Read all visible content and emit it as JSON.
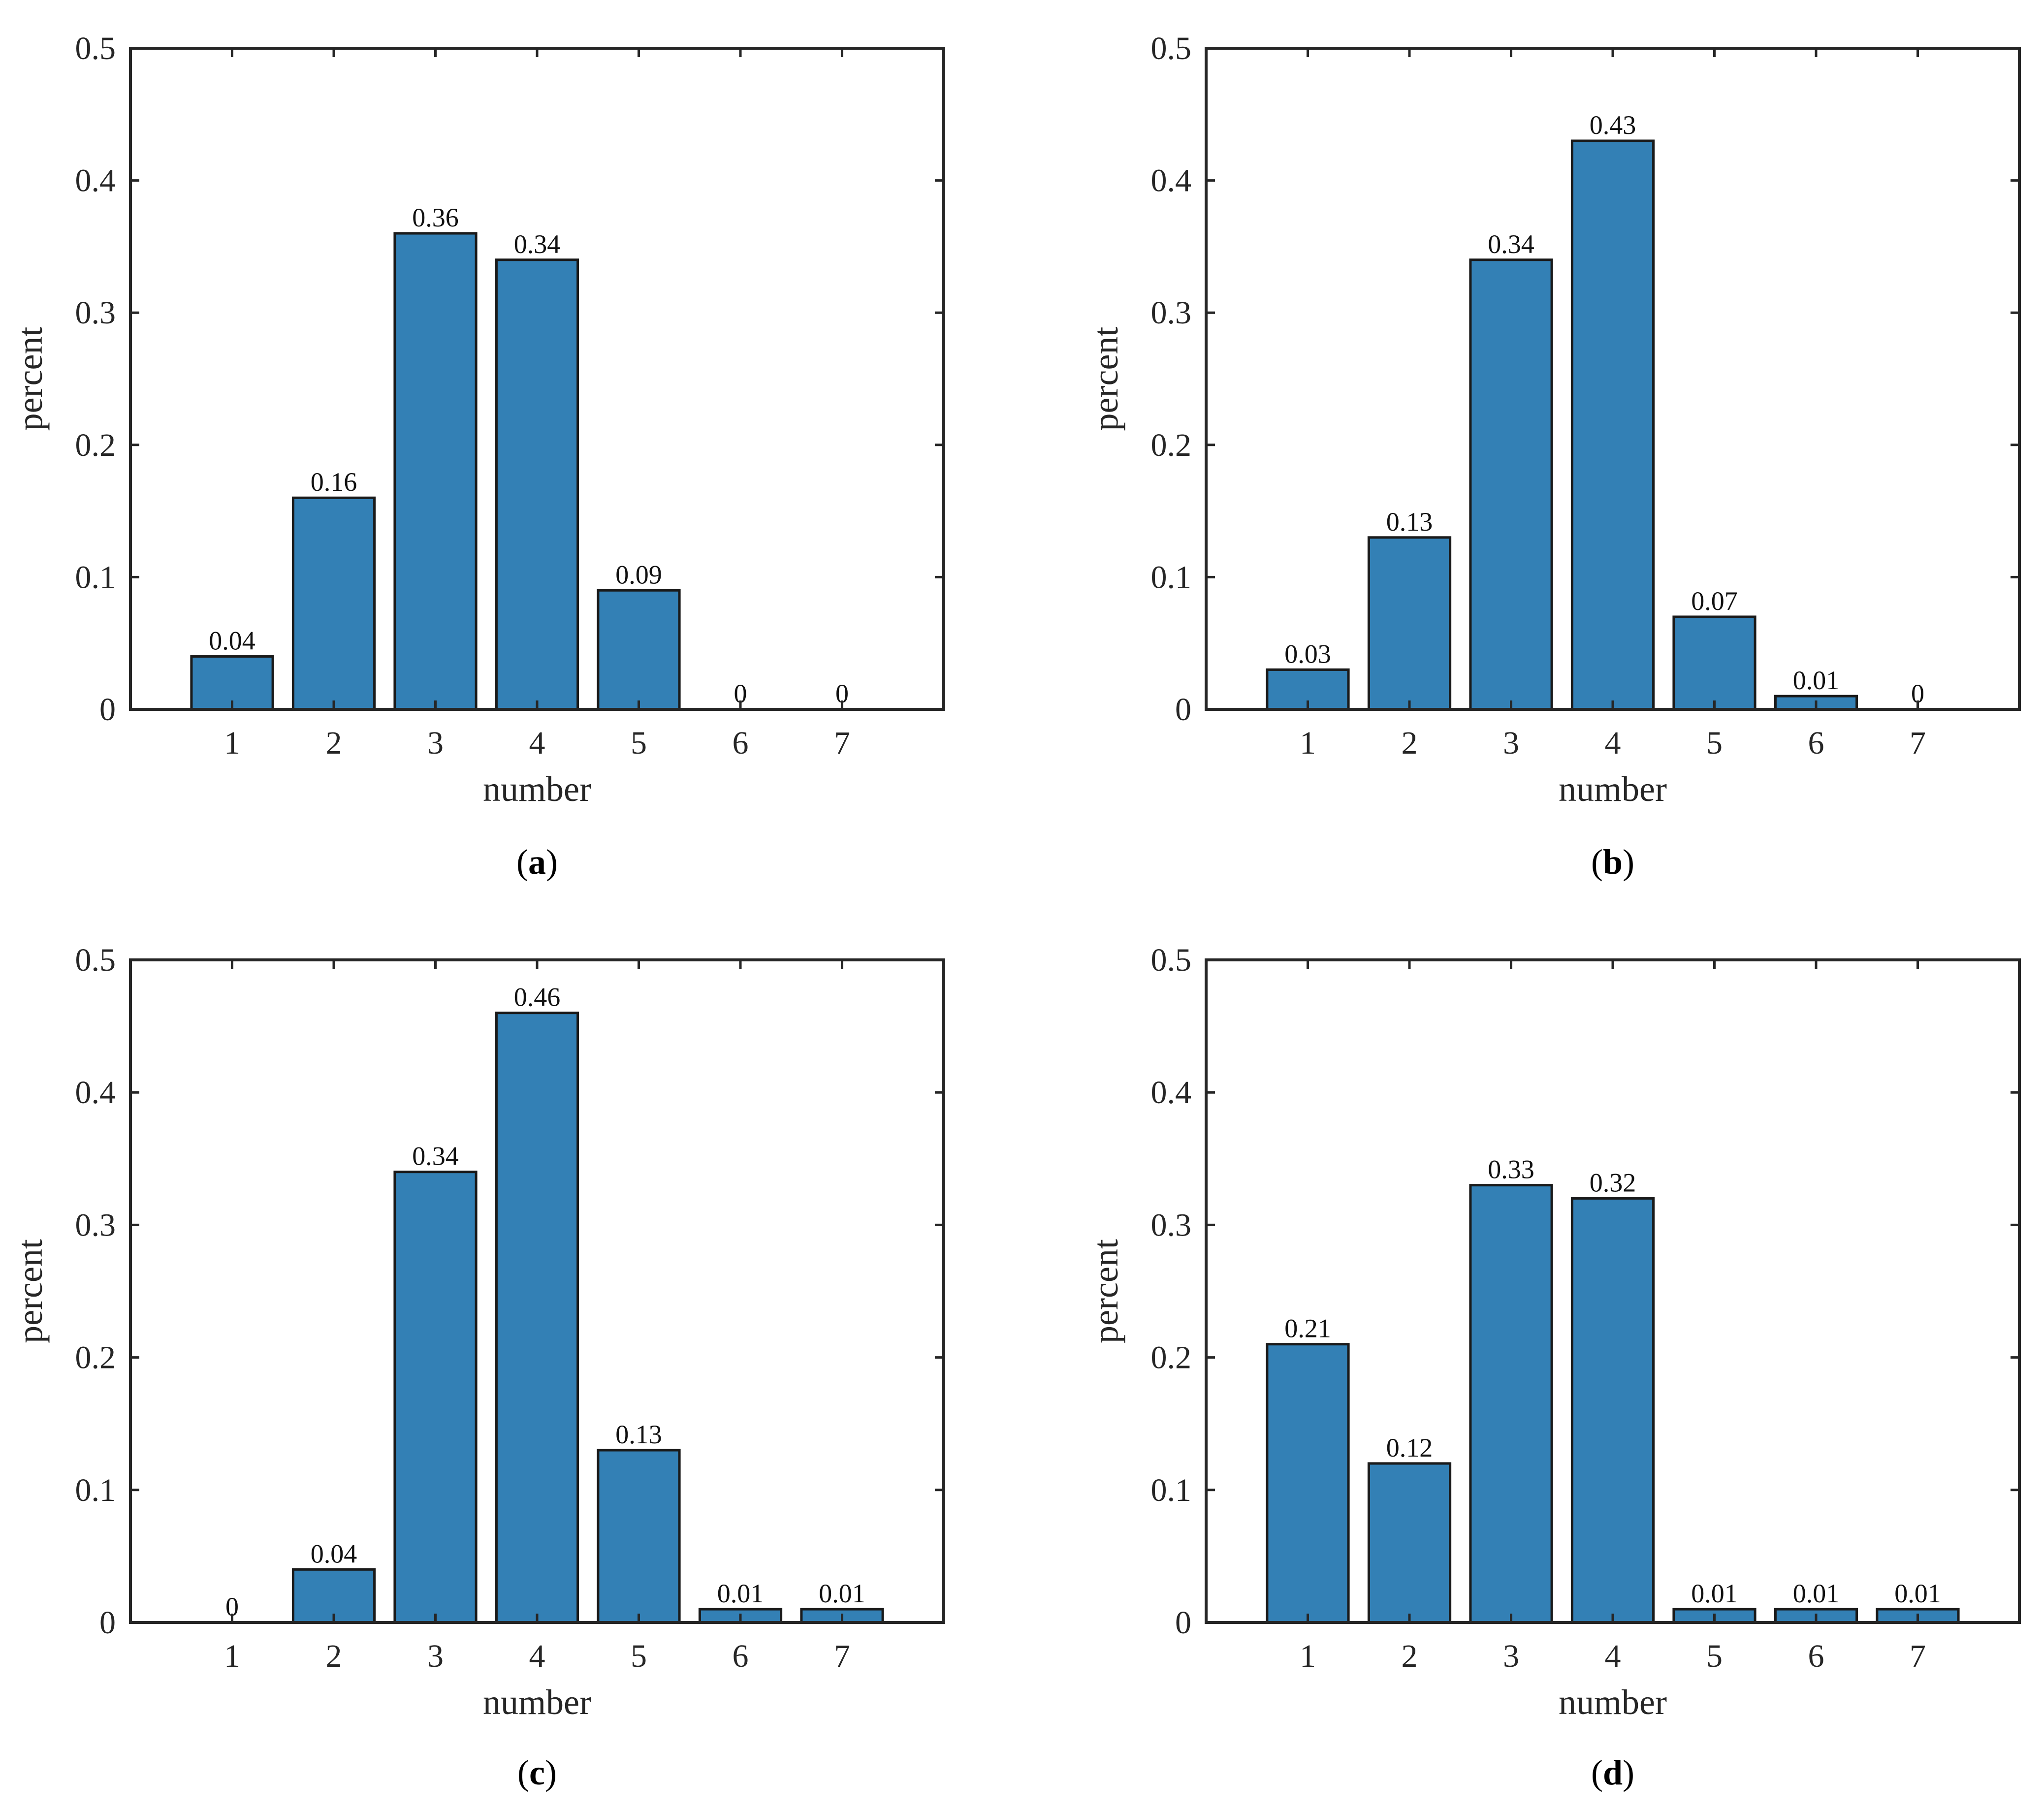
{
  "figure": {
    "colors": {
      "bar_fill": "#3380b5",
      "axis": "#262626",
      "background": "#ffffff"
    }
  },
  "chart_data": [
    {
      "panel": "a",
      "type": "bar",
      "categories": [
        "1",
        "2",
        "3",
        "4",
        "5",
        "6",
        "7"
      ],
      "values": [
        0.04,
        0.16,
        0.36,
        0.34,
        0.09,
        0,
        0
      ],
      "value_labels": [
        "0.04",
        "0.16",
        "0.36",
        "0.34",
        "0.09",
        "0",
        "0"
      ],
      "xlabel": "number",
      "ylabel": "percent",
      "ylim": [
        0,
        0.5
      ],
      "xlim": [
        0,
        8
      ],
      "yticks": [
        "0",
        "0.1",
        "0.2",
        "0.3",
        "0.4",
        "0.5"
      ],
      "grid": false,
      "caption_open": "(",
      "caption_letter": "a",
      "caption_close": ")"
    },
    {
      "panel": "b",
      "type": "bar",
      "categories": [
        "1",
        "2",
        "3",
        "4",
        "5",
        "6",
        "7"
      ],
      "values": [
        0.03,
        0.13,
        0.34,
        0.43,
        0.07,
        0.01,
        0
      ],
      "value_labels": [
        "0.03",
        "0.13",
        "0.34",
        "0.43",
        "0.07",
        "0.01",
        "0"
      ],
      "xlabel": "number",
      "ylabel": "percent",
      "ylim": [
        0,
        0.5
      ],
      "xlim": [
        0,
        8
      ],
      "yticks": [
        "0",
        "0.1",
        "0.2",
        "0.3",
        "0.4",
        "0.5"
      ],
      "grid": false,
      "caption_open": "(",
      "caption_letter": "b",
      "caption_close": ")"
    },
    {
      "panel": "c",
      "type": "bar",
      "categories": [
        "1",
        "2",
        "3",
        "4",
        "5",
        "6",
        "7"
      ],
      "values": [
        0,
        0.04,
        0.34,
        0.46,
        0.13,
        0.01,
        0.01
      ],
      "value_labels": [
        "0",
        "0.04",
        "0.34",
        "0.46",
        "0.13",
        "0.01",
        "0.01"
      ],
      "xlabel": "number",
      "ylabel": "percent",
      "ylim": [
        0,
        0.5
      ],
      "xlim": [
        0,
        8
      ],
      "yticks": [
        "0",
        "0.1",
        "0.2",
        "0.3",
        "0.4",
        "0.5"
      ],
      "grid": false,
      "caption_open": "(",
      "caption_letter": "c",
      "caption_close": ")"
    },
    {
      "panel": "d",
      "type": "bar",
      "categories": [
        "1",
        "2",
        "3",
        "4",
        "5",
        "6",
        "7"
      ],
      "values": [
        0.21,
        0.12,
        0.33,
        0.32,
        0.01,
        0.01,
        0.01
      ],
      "value_labels": [
        "0.21",
        "0.12",
        "0.33",
        "0.32",
        "0.01",
        "0.01",
        "0.01"
      ],
      "xlabel": "number",
      "ylabel": "percent",
      "ylim": [
        0,
        0.5
      ],
      "xlim": [
        0,
        8
      ],
      "yticks": [
        "0",
        "0.1",
        "0.2",
        "0.3",
        "0.4",
        "0.5"
      ],
      "grid": false,
      "caption_open": "(",
      "caption_letter": "d",
      "caption_close": ")"
    }
  ]
}
